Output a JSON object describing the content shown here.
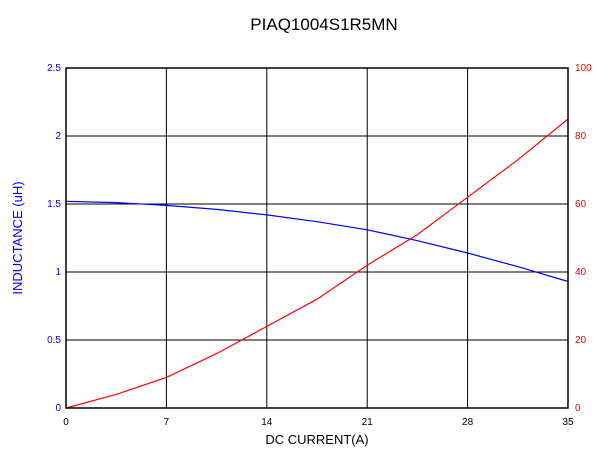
{
  "chart_data": {
    "type": "line",
    "title": "PIAQ1004S1R5MN",
    "xlabel": "DC CURRENT(A)",
    "ylabel": "INDUCTANCE (uH)",
    "y2label": "",
    "xlim": [
      0,
      35
    ],
    "ylim": [
      0,
      2.5
    ],
    "y2lim": [
      0,
      100
    ],
    "x_ticks": [
      "0",
      "7",
      "14",
      "21",
      "28",
      "35"
    ],
    "y_ticks": [
      "0",
      "0.5",
      "1",
      "1.5",
      "2",
      "2.5"
    ],
    "y2_ticks": [
      "0",
      "20",
      "40",
      "60",
      "80",
      "100"
    ],
    "grid": true,
    "colors": {
      "left_axis": "#0000ff",
      "right_axis": "#ff0000",
      "grid": "#000000"
    },
    "series": [
      {
        "axis": "left",
        "color": "#0000ff",
        "x": [
          0,
          3.5,
          7,
          10.5,
          14,
          17.5,
          21,
          24.5,
          28,
          31.5,
          35
        ],
        "values": [
          1.52,
          1.51,
          1.49,
          1.46,
          1.42,
          1.37,
          1.31,
          1.23,
          1.14,
          1.04,
          0.93
        ]
      },
      {
        "axis": "right",
        "color": "#ff0000",
        "x": [
          0,
          3.5,
          7,
          10.5,
          14,
          17.5,
          21,
          24.5,
          28,
          31.5,
          35
        ],
        "values": [
          0,
          4,
          9,
          16,
          24,
          32,
          42,
          51,
          62,
          73,
          85
        ]
      }
    ]
  }
}
